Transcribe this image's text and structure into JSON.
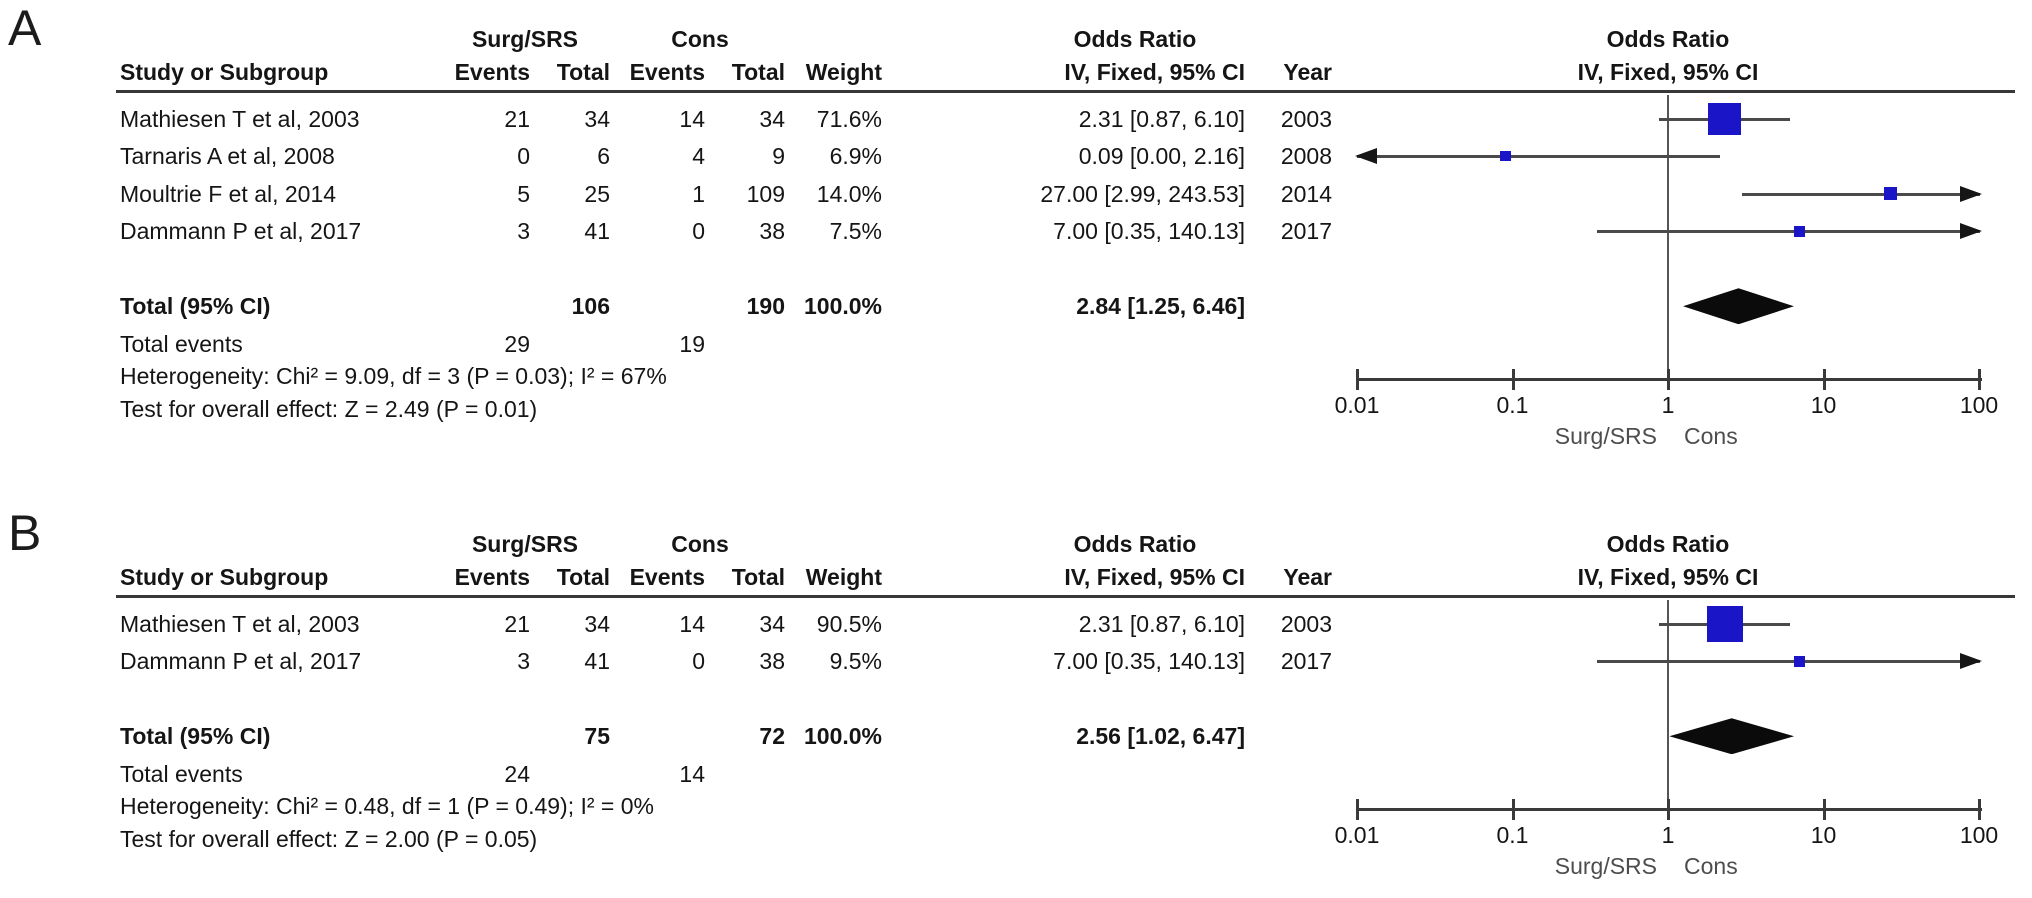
{
  "figure_type": "forest-plot-meta-analysis",
  "colors": {
    "square": "#1a16c8",
    "diamond": "#0b0b0b",
    "ci_line": "#4a4a4a",
    "axis_line": "#3a3a3a",
    "header_rule": "#383838",
    "null_line": "#555555",
    "arrow": "#161616",
    "text": "#151515",
    "favour_text": "#4d4d4d"
  },
  "chart_data": [
    {
      "type": "forest",
      "panel_label": "A",
      "columns": {
        "study": "Study or Subgroup",
        "group1": "Surg/SRS",
        "group2": "Cons",
        "events": "Events",
        "total": "Total",
        "weight": "Weight",
        "effect_header": "Odds Ratio",
        "effect_sub": "IV, Fixed, 95% CI",
        "year": "Year",
        "plot_header": "Odds Ratio",
        "plot_sub": "IV, Fixed, 95% CI"
      },
      "studies": [
        {
          "name": "Mathiesen T et al, 2003",
          "g1_events": "21",
          "g1_total": "34",
          "g2_events": "14",
          "g2_total": "34",
          "weight": "71.6%",
          "estimate_text": "2.31 [0.87, 6.10]",
          "year": "2003",
          "or": 2.31,
          "ci_low": 0.87,
          "ci_high": 6.1,
          "weight_value": 71.6
        },
        {
          "name": "Tarnaris A et al, 2008",
          "g1_events": "0",
          "g1_total": "6",
          "g2_events": "4",
          "g2_total": "9",
          "weight": "6.9%",
          "estimate_text": "0.09 [0.00, 2.16]",
          "year": "2008",
          "or": 0.09,
          "ci_low": 0.0,
          "ci_high": 2.16,
          "weight_value": 6.9
        },
        {
          "name": "Moultrie F et al, 2014",
          "g1_events": "5",
          "g1_total": "25",
          "g2_events": "1",
          "g2_total": "109",
          "weight": "14.0%",
          "estimate_text": "27.00 [2.99, 243.53]",
          "year": "2014",
          "or": 27.0,
          "ci_low": 2.99,
          "ci_high": 243.53,
          "weight_value": 14.0
        },
        {
          "name": "Dammann P et al, 2017",
          "g1_events": "3",
          "g1_total": "41",
          "g2_events": "0",
          "g2_total": "38",
          "weight": "7.5%",
          "estimate_text": "7.00 [0.35, 140.13]",
          "year": "2017",
          "or": 7.0,
          "ci_low": 0.35,
          "ci_high": 140.13,
          "weight_value": 7.5
        }
      ],
      "total": {
        "label": "Total (95% CI)",
        "g1_total": "106",
        "g2_total": "190",
        "weight": "100.0%",
        "estimate_text": "2.84 [1.25, 6.46]",
        "or": 2.84,
        "ci_low": 1.25,
        "ci_high": 6.46
      },
      "total_events": {
        "label": "Total events",
        "g1": "29",
        "g2": "19"
      },
      "heterogeneity": "Heterogeneity: Chi² = 9.09, df = 3 (P = 0.03); I² = 67%",
      "overall_effect": "Test for overall effect: Z = 2.49 (P = 0.01)",
      "axis": {
        "scale": "log",
        "min": 0.01,
        "max": 100,
        "ticks": [
          "0.01",
          "0.1",
          "1",
          "10",
          "100"
        ],
        "favours_left": "Surg/SRS",
        "favours_right": "Cons"
      }
    },
    {
      "type": "forest",
      "panel_label": "B",
      "columns": {
        "study": "Study or Subgroup",
        "group1": "Surg/SRS",
        "group2": "Cons",
        "events": "Events",
        "total": "Total",
        "weight": "Weight",
        "effect_header": "Odds Ratio",
        "effect_sub": "IV, Fixed, 95% CI",
        "year": "Year",
        "plot_header": "Odds Ratio",
        "plot_sub": "IV, Fixed, 95% CI"
      },
      "studies": [
        {
          "name": "Mathiesen T et al, 2003",
          "g1_events": "21",
          "g1_total": "34",
          "g2_events": "14",
          "g2_total": "34",
          "weight": "90.5%",
          "estimate_text": "2.31 [0.87, 6.10]",
          "year": "2003",
          "or": 2.31,
          "ci_low": 0.87,
          "ci_high": 6.1,
          "weight_value": 90.5
        },
        {
          "name": "Dammann P et al, 2017",
          "g1_events": "3",
          "g1_total": "41",
          "g2_events": "0",
          "g2_total": "38",
          "weight": "9.5%",
          "estimate_text": "7.00 [0.35, 140.13]",
          "year": "2017",
          "or": 7.0,
          "ci_low": 0.35,
          "ci_high": 140.13,
          "weight_value": 9.5
        }
      ],
      "total": {
        "label": "Total (95% CI)",
        "g1_total": "75",
        "g2_total": "72",
        "weight": "100.0%",
        "estimate_text": "2.56 [1.02, 6.47]",
        "or": 2.56,
        "ci_low": 1.02,
        "ci_high": 6.47
      },
      "total_events": {
        "label": "Total events",
        "g1": "24",
        "g2": "14"
      },
      "heterogeneity": "Heterogeneity: Chi² = 0.48, df = 1 (P = 0.49); I² = 0%",
      "overall_effect": "Test for overall effect: Z = 2.00 (P = 0.05)",
      "axis": {
        "scale": "log",
        "min": 0.01,
        "max": 100,
        "ticks": [
          "0.01",
          "0.1",
          "1",
          "10",
          "100"
        ],
        "favours_left": "Surg/SRS",
        "favours_right": "Cons"
      }
    }
  ]
}
